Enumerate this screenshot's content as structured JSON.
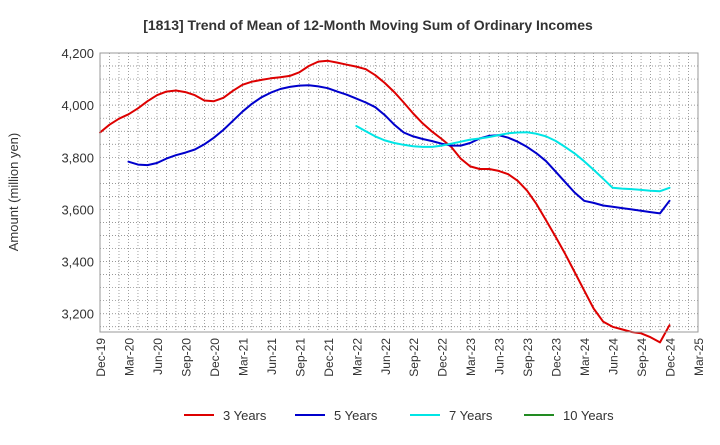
{
  "chart_data": {
    "type": "line",
    "title": "[1813]  Trend of Mean of 12-Month Moving Sum of Ordinary Incomes",
    "xlabel": "",
    "ylabel": "Amount (million yen)",
    "ylim": [
      3130,
      4200
    ],
    "yticks": [
      3200,
      3400,
      3600,
      3800,
      4000,
      4200
    ],
    "ytick_labels": [
      "3,200",
      "3,400",
      "3,600",
      "3,800",
      "4,000",
      "4,200"
    ],
    "x_range_months": [
      0,
      63
    ],
    "xtick_labels": [
      "Dec-19",
      "Mar-20",
      "Jun-20",
      "Sep-20",
      "Dec-20",
      "Mar-21",
      "Jun-21",
      "Sep-21",
      "Dec-21",
      "Mar-22",
      "Jun-22",
      "Sep-22",
      "Dec-22",
      "Mar-23",
      "Jun-23",
      "Sep-23",
      "Dec-23",
      "Mar-24",
      "Jun-24",
      "Sep-24",
      "Dec-24",
      "Mar-25"
    ],
    "grid": true,
    "legend_position": "bottom",
    "series": [
      {
        "name": "3 Years",
        "color": "#dd0000",
        "x": [
          0,
          1,
          2,
          3,
          4,
          5,
          6,
          7,
          8,
          9,
          10,
          11,
          12,
          13,
          14,
          15,
          16,
          17,
          18,
          19,
          20,
          21,
          22,
          23,
          24,
          25,
          26,
          27,
          28,
          29,
          30,
          31,
          32,
          33,
          34,
          35,
          36,
          37,
          38,
          39,
          40,
          41,
          42,
          43,
          44,
          45,
          46,
          47,
          48,
          49,
          50,
          51,
          52,
          53,
          54,
          55,
          56,
          57,
          58,
          59,
          60
        ],
        "values": [
          3895,
          3925,
          3948,
          3965,
          3988,
          4015,
          4038,
          4052,
          4056,
          4050,
          4038,
          4018,
          4015,
          4028,
          4055,
          4078,
          4090,
          4097,
          4103,
          4107,
          4112,
          4126,
          4150,
          4167,
          4170,
          4163,
          4155,
          4148,
          4138,
          4115,
          4085,
          4050,
          4010,
          3968,
          3930,
          3898,
          3870,
          3840,
          3795,
          3765,
          3755,
          3755,
          3748,
          3735,
          3710,
          3672,
          3620,
          3558,
          3495,
          3430,
          3360,
          3290,
          3220,
          3170,
          3150,
          3140,
          3130,
          3125,
          3110,
          3090,
          3156
        ]
      },
      {
        "name": "5 Years",
        "color": "#0000cc",
        "x": [
          3,
          4,
          5,
          6,
          7,
          8,
          9,
          10,
          11,
          12,
          13,
          14,
          15,
          16,
          17,
          18,
          19,
          20,
          21,
          22,
          23,
          24,
          25,
          26,
          27,
          28,
          29,
          30,
          31,
          32,
          33,
          34,
          35,
          36,
          37,
          38,
          39,
          40,
          41,
          42,
          43,
          44,
          45,
          46,
          47,
          48,
          49,
          50,
          51,
          52,
          53,
          54,
          55,
          56,
          57,
          58,
          59,
          60
        ],
        "values": [
          3783,
          3772,
          3770,
          3778,
          3795,
          3808,
          3818,
          3830,
          3850,
          3875,
          3905,
          3940,
          3975,
          4005,
          4030,
          4048,
          4062,
          4070,
          4075,
          4076,
          4072,
          4065,
          4052,
          4040,
          4025,
          4010,
          3992,
          3962,
          3925,
          3895,
          3880,
          3870,
          3862,
          3852,
          3845,
          3845,
          3855,
          3872,
          3882,
          3885,
          3875,
          3860,
          3840,
          3815,
          3785,
          3745,
          3705,
          3665,
          3633,
          3625,
          3615,
          3610,
          3605,
          3600,
          3595,
          3590,
          3585,
          3633
        ]
      },
      {
        "name": "7 Years",
        "color": "#00e5e5",
        "x": [
          27,
          28,
          29,
          30,
          31,
          32,
          33,
          34,
          35,
          36,
          37,
          38,
          39,
          40,
          41,
          42,
          43,
          44,
          45,
          46,
          47,
          48,
          49,
          50,
          51,
          52,
          53,
          54,
          55,
          56,
          57,
          58,
          59,
          60
        ],
        "values": [
          3920,
          3900,
          3880,
          3865,
          3855,
          3848,
          3842,
          3840,
          3840,
          3845,
          3852,
          3860,
          3868,
          3872,
          3878,
          3885,
          3892,
          3895,
          3896,
          3890,
          3880,
          3863,
          3840,
          3815,
          3785,
          3752,
          3718,
          3683,
          3680,
          3678,
          3675,
          3672,
          3670,
          3683
        ]
      },
      {
        "name": "10 Years",
        "color": "#228b22",
        "x": [],
        "values": []
      }
    ]
  }
}
